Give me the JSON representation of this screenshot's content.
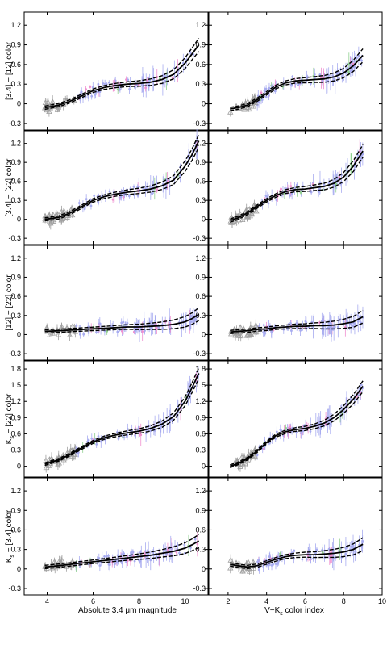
{
  "figure": {
    "xlabel_left": "Absolute 3.4 μm magnitude",
    "xlabel_right": "V−K",
    "xlabel_right_sub": "s",
    "xlabel_right_tail": " color index",
    "colors": {
      "fit": "#000000",
      "gray": "#a0a0a0",
      "blue": "#a8acf0",
      "pink": "#f090d0",
      "green": "#90d090"
    }
  },
  "chart_data": [
    {
      "row": 0,
      "col": 0,
      "type": "scatter",
      "ylabel": "[3.4] − [12] color",
      "xlim": [
        3,
        11
      ],
      "ylim": [
        -0.4,
        1.4
      ],
      "yticks": [
        -0.3,
        0,
        0.3,
        0.6,
        0.9,
        1.2
      ],
      "xticks": [],
      "fit": {
        "x": [
          3.9,
          4.5,
          5.0,
          5.5,
          6.0,
          6.5,
          7.0,
          7.5,
          8.0,
          8.5,
          9.0,
          9.5,
          10.0,
          10.3,
          10.6
        ],
        "y": [
          -0.06,
          -0.02,
          0.04,
          0.12,
          0.2,
          0.25,
          0.28,
          0.3,
          0.31,
          0.33,
          0.37,
          0.45,
          0.62,
          0.76,
          0.9
        ]
      }
    },
    {
      "row": 0,
      "col": 1,
      "type": "scatter",
      "ylabel": "",
      "xlim": [
        1,
        10
      ],
      "ylim": [
        -0.4,
        1.4
      ],
      "yticks": [
        -0.3,
        0,
        0.3,
        0.6,
        0.9,
        1.2
      ],
      "xticks": [],
      "fit": {
        "x": [
          2.1,
          2.5,
          3.0,
          3.5,
          4.0,
          4.5,
          5.0,
          5.5,
          6.0,
          6.5,
          7.0,
          7.5,
          8.0,
          8.5,
          9.0
        ],
        "y": [
          -0.08,
          -0.06,
          -0.02,
          0.06,
          0.16,
          0.26,
          0.32,
          0.35,
          0.36,
          0.37,
          0.38,
          0.41,
          0.47,
          0.58,
          0.74
        ]
      }
    },
    {
      "row": 1,
      "col": 0,
      "type": "scatter",
      "ylabel": "[3.4] − [22] color",
      "xlim": [
        3,
        11
      ],
      "ylim": [
        -0.4,
        1.4
      ],
      "yticks": [
        -0.3,
        0,
        0.3,
        0.6,
        0.9,
        1.2
      ],
      "xticks": [],
      "fit": {
        "x": [
          3.9,
          4.5,
          5.0,
          5.5,
          6.0,
          6.5,
          7.0,
          7.5,
          8.0,
          8.5,
          9.0,
          9.5,
          10.0,
          10.3,
          10.6
        ],
        "y": [
          0.0,
          0.03,
          0.1,
          0.2,
          0.3,
          0.36,
          0.4,
          0.43,
          0.45,
          0.48,
          0.53,
          0.62,
          0.84,
          1.02,
          1.24
        ]
      }
    },
    {
      "row": 1,
      "col": 1,
      "type": "scatter",
      "ylabel": "",
      "xlim": [
        1,
        10
      ],
      "ylim": [
        -0.4,
        1.4
      ],
      "yticks": [
        -0.3,
        0,
        0.3,
        0.6,
        0.9,
        1.2
      ],
      "xticks": [],
      "fit": {
        "x": [
          2.1,
          2.5,
          3.0,
          3.5,
          4.0,
          4.5,
          5.0,
          5.5,
          6.0,
          6.5,
          7.0,
          7.5,
          8.0,
          8.5,
          9.0
        ],
        "y": [
          -0.02,
          0.02,
          0.1,
          0.2,
          0.3,
          0.38,
          0.44,
          0.47,
          0.48,
          0.5,
          0.52,
          0.57,
          0.67,
          0.84,
          1.08
        ]
      }
    },
    {
      "row": 2,
      "col": 0,
      "type": "scatter",
      "ylabel": "[12] − [22] color",
      "xlim": [
        3,
        11
      ],
      "ylim": [
        -0.4,
        1.4
      ],
      "yticks": [
        -0.3,
        0,
        0.3,
        0.6,
        0.9,
        1.2
      ],
      "xticks": [],
      "fit": {
        "x": [
          3.9,
          4.5,
          5.0,
          5.5,
          6.0,
          6.5,
          7.0,
          7.5,
          8.0,
          8.5,
          9.0,
          9.5,
          10.0,
          10.3,
          10.6
        ],
        "y": [
          0.05,
          0.06,
          0.07,
          0.08,
          0.09,
          0.1,
          0.11,
          0.12,
          0.12,
          0.13,
          0.14,
          0.16,
          0.2,
          0.25,
          0.32
        ]
      }
    },
    {
      "row": 2,
      "col": 1,
      "type": "scatter",
      "ylabel": "",
      "xlim": [
        1,
        10
      ],
      "ylim": [
        -0.4,
        1.4
      ],
      "yticks": [
        -0.3,
        0,
        0.3,
        0.6,
        0.9,
        1.2
      ],
      "xticks": [],
      "fit": {
        "x": [
          2.1,
          2.5,
          3.0,
          3.5,
          4.0,
          4.5,
          5.0,
          5.5,
          6.0,
          6.5,
          7.0,
          7.5,
          8.0,
          8.5,
          9.0
        ],
        "y": [
          0.04,
          0.05,
          0.06,
          0.08,
          0.09,
          0.11,
          0.12,
          0.13,
          0.13,
          0.14,
          0.14,
          0.15,
          0.17,
          0.2,
          0.28
        ]
      }
    },
    {
      "row": 3,
      "col": 0,
      "type": "scatter",
      "ylabel": "K",
      "ylabel_sub": "s",
      "ylabel_tail": " − [22] color",
      "xlim": [
        3,
        11
      ],
      "ylim": [
        -0.2,
        1.95
      ],
      "yticks": [
        0,
        0.3,
        0.6,
        0.9,
        1.2,
        1.5,
        1.8
      ],
      "xticks": [],
      "fit": {
        "x": [
          3.9,
          4.5,
          5.0,
          5.5,
          6.0,
          6.5,
          7.0,
          7.5,
          8.0,
          8.5,
          9.0,
          9.5,
          10.0,
          10.3,
          10.6
        ],
        "y": [
          0.04,
          0.12,
          0.22,
          0.34,
          0.45,
          0.53,
          0.58,
          0.62,
          0.65,
          0.7,
          0.78,
          0.92,
          1.2,
          1.45,
          1.72
        ]
      }
    },
    {
      "row": 3,
      "col": 1,
      "type": "scatter",
      "ylabel": "",
      "xlim": [
        1,
        10
      ],
      "ylim": [
        -0.2,
        1.95
      ],
      "yticks": [
        0,
        0.3,
        0.6,
        0.9,
        1.2,
        1.5,
        1.8
      ],
      "xticks": [],
      "fit": {
        "x": [
          2.1,
          2.5,
          3.0,
          3.5,
          4.0,
          4.5,
          5.0,
          5.5,
          6.0,
          6.5,
          7.0,
          7.5,
          8.0,
          8.5,
          9.0
        ],
        "y": [
          0.0,
          0.05,
          0.14,
          0.28,
          0.44,
          0.57,
          0.64,
          0.68,
          0.7,
          0.74,
          0.8,
          0.9,
          1.05,
          1.24,
          1.48
        ]
      }
    },
    {
      "row": 4,
      "col": 0,
      "type": "scatter",
      "ylabel": "K",
      "ylabel_sub": "s",
      "ylabel_tail": " − [3.4] color",
      "xlim": [
        3,
        11
      ],
      "ylim": [
        -0.4,
        1.4
      ],
      "yticks": [
        -0.3,
        0,
        0.3,
        0.6,
        0.9,
        1.2
      ],
      "xticks": [
        4,
        6,
        8,
        10
      ],
      "fit": {
        "x": [
          3.9,
          4.5,
          5.0,
          5.5,
          6.0,
          6.5,
          7.0,
          7.5,
          8.0,
          8.5,
          9.0,
          9.5,
          10.0,
          10.3,
          10.6
        ],
        "y": [
          0.03,
          0.05,
          0.07,
          0.09,
          0.11,
          0.13,
          0.15,
          0.17,
          0.19,
          0.21,
          0.24,
          0.27,
          0.32,
          0.37,
          0.43
        ]
      }
    },
    {
      "row": 4,
      "col": 1,
      "type": "scatter",
      "ylabel": "",
      "xlim": [
        1,
        10
      ],
      "ylim": [
        -0.4,
        1.4
      ],
      "yticks": [
        -0.3,
        0,
        0.3,
        0.6,
        0.9,
        1.2
      ],
      "xticks": [
        2,
        4,
        6,
        8,
        10
      ],
      "fit": {
        "x": [
          2.1,
          2.5,
          3.0,
          3.5,
          4.0,
          4.5,
          5.0,
          5.5,
          6.0,
          6.5,
          7.0,
          7.5,
          8.0,
          8.5,
          9.0
        ],
        "y": [
          0.07,
          0.05,
          0.03,
          0.05,
          0.1,
          0.15,
          0.19,
          0.21,
          0.22,
          0.22,
          0.23,
          0.24,
          0.26,
          0.3,
          0.38
        ]
      }
    }
  ]
}
